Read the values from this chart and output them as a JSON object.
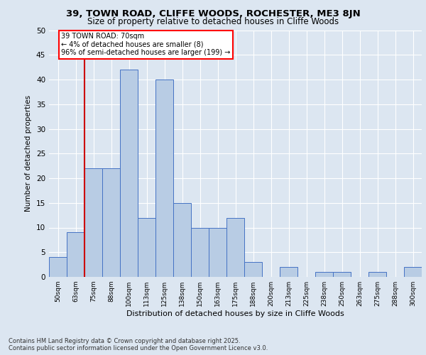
{
  "title1": "39, TOWN ROAD, CLIFFE WOODS, ROCHESTER, ME3 8JN",
  "title2": "Size of property relative to detached houses in Cliffe Woods",
  "xlabel": "Distribution of detached houses by size in Cliffe Woods",
  "ylabel": "Number of detached properties",
  "footnote1": "Contains HM Land Registry data © Crown copyright and database right 2025.",
  "footnote2": "Contains public sector information licensed under the Open Government Licence v3.0.",
  "annotation_line1": "39 TOWN ROAD: 70sqm",
  "annotation_line2": "← 4% of detached houses are smaller (8)",
  "annotation_line3": "96% of semi-detached houses are larger (199) →",
  "bar_values": [
    4,
    9,
    22,
    22,
    42,
    12,
    40,
    15,
    10,
    10,
    12,
    3,
    0,
    2,
    0,
    1,
    1,
    0,
    1,
    0,
    2
  ],
  "bin_labels": [
    "50sqm",
    "63sqm",
    "75sqm",
    "88sqm",
    "100sqm",
    "113sqm",
    "125sqm",
    "138sqm",
    "150sqm",
    "163sqm",
    "175sqm",
    "188sqm",
    "200sqm",
    "213sqm",
    "225sqm",
    "238sqm",
    "250sqm",
    "263sqm",
    "275sqm",
    "288sqm",
    "300sqm"
  ],
  "bar_color": "#b8cce4",
  "bar_edge_color": "#4472c4",
  "background_color": "#dce6f1",
  "plot_bg_color": "#dce6f1",
  "grid_color": "#ffffff",
  "marker_line_color": "#cc0000",
  "ylim": [
    0,
    50
  ],
  "yticks": [
    0,
    5,
    10,
    15,
    20,
    25,
    30,
    35,
    40,
    45,
    50
  ]
}
